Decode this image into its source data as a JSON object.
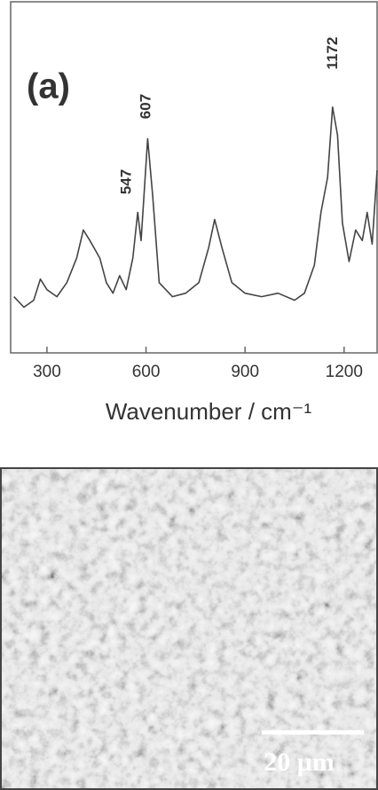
{
  "chart_data": {
    "type": "line",
    "panel_label": "(a)",
    "xlabel": "Wavenumber / cm⁻¹",
    "x": [
      200,
      230,
      260,
      280,
      300,
      330,
      360,
      390,
      410,
      430,
      460,
      480,
      500,
      520,
      540,
      560,
      575,
      585,
      605,
      620,
      640,
      680,
      720,
      760,
      790,
      808,
      830,
      860,
      900,
      950,
      1000,
      1050,
      1080,
      1110,
      1130,
      1150,
      1165,
      1180,
      1195,
      1215,
      1235,
      1255,
      1270,
      1285,
      1300
    ],
    "series": [
      {
        "color": "#444444",
        "values": [
          16,
          13,
          15,
          21,
          18,
          16,
          20,
          27,
          35,
          32,
          27,
          20,
          17,
          22,
          18,
          27,
          40,
          32,
          61,
          45,
          20,
          16,
          17,
          20,
          30,
          38,
          30,
          20,
          17,
          16,
          17,
          15,
          17,
          25,
          40,
          50,
          70,
          62,
          37,
          26,
          35,
          32,
          40,
          31,
          52
        ]
      }
    ],
    "peak_labels": [
      547,
      607,
      1172
    ],
    "xlim": [
      190,
      1300
    ],
    "ylim": [
      0,
      100
    ],
    "xticks": [
      300,
      600,
      900,
      1200
    ]
  },
  "micrograph": {
    "scale_bar_label": "20 μm"
  }
}
